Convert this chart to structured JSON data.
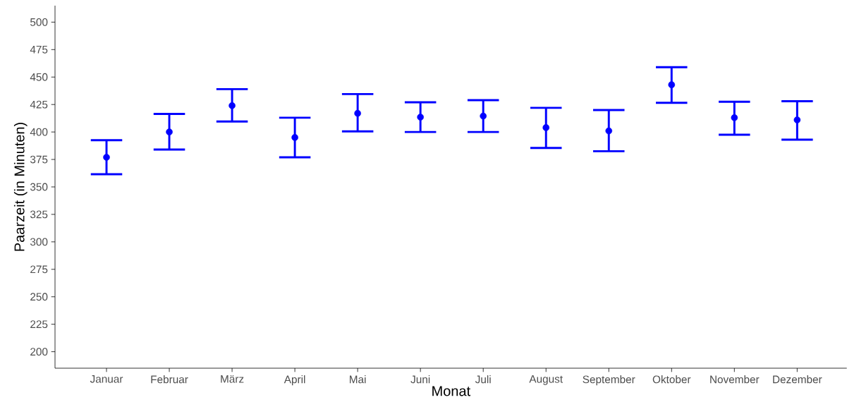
{
  "chart_data": {
    "type": "scatter",
    "xlabel": "Monat",
    "ylabel": "Paarzeit (in Minuten)",
    "categories": [
      "Januar",
      "Februar",
      "März",
      "April",
      "Mai",
      "Juni",
      "Juli",
      "August",
      "September",
      "Oktober",
      "November",
      "Dezember"
    ],
    "values": [
      377,
      400,
      424,
      395,
      417,
      413.5,
      414.5,
      404,
      401,
      443,
      413,
      411
    ],
    "errors": [
      [
        361.5,
        392.5
      ],
      [
        384,
        416.5
      ],
      [
        409.5,
        439
      ],
      [
        377,
        413
      ],
      [
        400.5,
        434.5
      ],
      [
        400,
        427
      ],
      [
        400,
        429
      ],
      [
        385.5,
        422
      ],
      [
        382.5,
        420
      ],
      [
        426.5,
        459
      ],
      [
        397.5,
        427.5
      ],
      [
        393,
        428
      ]
    ],
    "color": "#0000ff",
    "marker": "circle",
    "grid": false,
    "ylim": [
      185,
      515
    ],
    "yticks": [
      200,
      225,
      250,
      275,
      300,
      325,
      350,
      375,
      400,
      425,
      450,
      475,
      500
    ]
  }
}
